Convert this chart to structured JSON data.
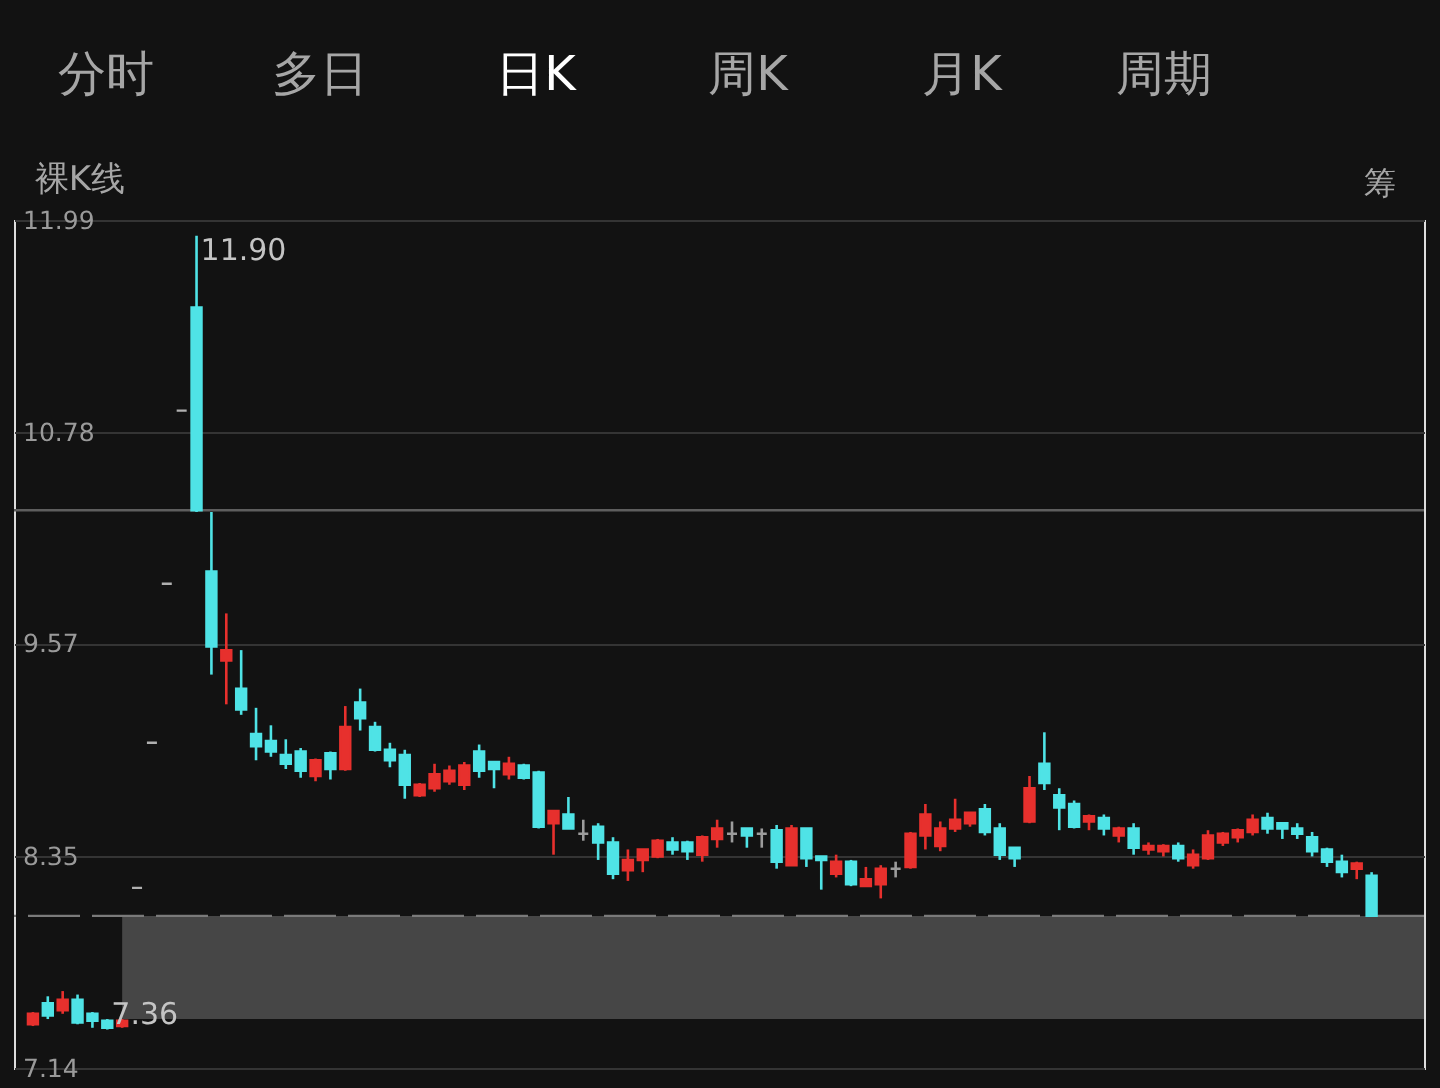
{
  "chart_data": {
    "type": "candlestick",
    "categories": [
      null,
      null,
      null,
      null,
      null,
      null,
      null,
      null,
      null,
      null,
      null,
      null,
      null,
      null,
      null,
      null,
      null,
      null,
      null,
      null,
      null,
      null,
      null,
      null,
      null,
      null,
      null,
      null,
      null,
      null,
      null,
      null,
      null,
      null,
      null,
      null,
      null,
      null,
      null,
      null,
      null,
      null,
      null,
      null,
      null,
      null,
      null,
      null,
      null,
      null,
      null,
      null,
      null,
      null,
      null,
      null,
      null,
      null,
      null,
      null,
      null,
      null,
      null,
      null,
      null,
      null,
      null,
      null,
      null,
      null,
      null,
      null,
      null,
      null,
      null,
      null,
      null,
      null,
      null,
      null,
      null,
      null,
      null,
      null,
      null,
      null,
      null,
      null,
      null,
      null,
      null
    ],
    "ohlc": [
      [
        7.39,
        7.46,
        7.38,
        7.45
      ],
      [
        7.51,
        7.55,
        7.42,
        7.44
      ],
      [
        7.47,
        7.58,
        7.45,
        7.53
      ],
      [
        7.53,
        7.56,
        7.39,
        7.4
      ],
      [
        7.45,
        7.46,
        7.37,
        7.41
      ],
      [
        7.41,
        7.42,
        7.36,
        7.37
      ],
      [
        7.38,
        7.42,
        7.37,
        7.41
      ],
      [
        8.17,
        8.17,
        8.17,
        8.17
      ],
      [
        9.0,
        9.0,
        9.0,
        9.0
      ],
      [
        9.91,
        9.91,
        9.91,
        9.91
      ],
      [
        10.9,
        10.9,
        10.9,
        10.9
      ],
      [
        11.49,
        11.9,
        10.32,
        10.33
      ],
      [
        9.98,
        10.32,
        9.39,
        9.55
      ],
      [
        9.47,
        9.74,
        9.22,
        9.53
      ],
      [
        9.31,
        9.53,
        9.16,
        9.19
      ],
      [
        9.05,
        9.2,
        8.9,
        8.98
      ],
      [
        9.01,
        9.1,
        8.92,
        8.95
      ],
      [
        8.93,
        9.02,
        8.85,
        8.88
      ],
      [
        8.95,
        8.97,
        8.8,
        8.84
      ],
      [
        8.81,
        8.91,
        8.78,
        8.9
      ],
      [
        8.94,
        8.95,
        8.79,
        8.85
      ],
      [
        8.85,
        9.21,
        8.84,
        9.09
      ],
      [
        9.23,
        9.31,
        9.07,
        9.14
      ],
      [
        9.09,
        9.12,
        8.95,
        8.96
      ],
      [
        8.96,
        9.0,
        8.86,
        8.9
      ],
      [
        8.93,
        8.96,
        8.68,
        8.76
      ],
      [
        8.7,
        8.77,
        8.69,
        8.76
      ],
      [
        8.74,
        8.88,
        8.72,
        8.82
      ],
      [
        8.78,
        8.87,
        8.76,
        8.84
      ],
      [
        8.76,
        8.89,
        8.73,
        8.87
      ],
      [
        8.95,
        8.99,
        8.8,
        8.84
      ],
      [
        8.89,
        8.89,
        8.74,
        8.85
      ],
      [
        8.82,
        8.92,
        8.79,
        8.88
      ],
      [
        8.87,
        8.88,
        8.79,
        8.8
      ],
      [
        8.83,
        8.84,
        8.51,
        8.52
      ],
      [
        8.54,
        8.61,
        8.36,
        8.61
      ],
      [
        8.59,
        8.69,
        8.51,
        8.51
      ],
      [
        8.48,
        8.56,
        8.44,
        8.48
      ],
      [
        8.52,
        8.54,
        8.33,
        8.43
      ],
      [
        8.43,
        8.46,
        8.22,
        8.25
      ],
      [
        8.27,
        8.39,
        8.21,
        8.33
      ],
      [
        8.33,
        8.39,
        8.26,
        8.39
      ],
      [
        8.35,
        8.45,
        8.34,
        8.44
      ],
      [
        8.43,
        8.46,
        8.36,
        8.39
      ],
      [
        8.43,
        8.44,
        8.33,
        8.38
      ],
      [
        8.36,
        8.47,
        8.32,
        8.46
      ],
      [
        8.45,
        8.56,
        8.4,
        8.51
      ],
      [
        8.48,
        8.55,
        8.43,
        8.48
      ],
      [
        8.51,
        8.51,
        8.4,
        8.47
      ],
      [
        8.48,
        8.51,
        8.4,
        8.48
      ],
      [
        8.5,
        8.53,
        8.28,
        8.32
      ],
      [
        8.3,
        8.53,
        8.3,
        8.51
      ],
      [
        8.51,
        8.51,
        8.29,
        8.34
      ],
      [
        8.35,
        8.35,
        8.16,
        8.33
      ],
      [
        8.25,
        8.36,
        8.23,
        8.32
      ],
      [
        8.32,
        8.33,
        8.18,
        8.19
      ],
      [
        8.18,
        8.29,
        8.18,
        8.22
      ],
      [
        8.19,
        8.3,
        8.11,
        8.28
      ],
      [
        8.28,
        8.32,
        8.23,
        8.28
      ],
      [
        8.29,
        8.49,
        8.28,
        8.48
      ],
      [
        8.47,
        8.65,
        8.39,
        8.59
      ],
      [
        8.41,
        8.55,
        8.38,
        8.51
      ],
      [
        8.51,
        8.68,
        8.49,
        8.56
      ],
      [
        8.54,
        8.6,
        8.52,
        8.6
      ],
      [
        8.62,
        8.65,
        8.47,
        8.49
      ],
      [
        8.51,
        8.54,
        8.33,
        8.36
      ],
      [
        8.4,
        8.4,
        8.29,
        8.34
      ],
      [
        8.55,
        8.81,
        8.54,
        8.74
      ],
      [
        8.88,
        9.06,
        8.73,
        8.77
      ],
      [
        8.7,
        8.74,
        8.5,
        8.63
      ],
      [
        8.65,
        8.67,
        8.51,
        8.52
      ],
      [
        8.55,
        8.59,
        8.5,
        8.58
      ],
      [
        8.57,
        8.59,
        8.47,
        8.51
      ],
      [
        8.47,
        8.52,
        8.43,
        8.51
      ],
      [
        8.51,
        8.54,
        8.36,
        8.4
      ],
      [
        8.39,
        8.43,
        8.36,
        8.41
      ],
      [
        8.38,
        8.42,
        8.35,
        8.41
      ],
      [
        8.41,
        8.43,
        8.32,
        8.34
      ],
      [
        8.3,
        8.39,
        8.28,
        8.36
      ],
      [
        8.34,
        8.5,
        8.33,
        8.47
      ],
      [
        8.43,
        8.49,
        8.41,
        8.48
      ],
      [
        8.46,
        8.51,
        8.43,
        8.5
      ],
      [
        8.49,
        8.59,
        8.47,
        8.56
      ],
      [
        8.57,
        8.6,
        8.48,
        8.51
      ],
      [
        8.54,
        8.54,
        8.45,
        8.51
      ],
      [
        8.51,
        8.54,
        8.45,
        8.48
      ],
      [
        8.46,
        8.49,
        8.35,
        8.38
      ],
      [
        8.39,
        8.4,
        8.29,
        8.32
      ],
      [
        8.32,
        8.36,
        8.23,
        8.26
      ],
      [
        8.28,
        8.32,
        8.22,
        8.31
      ],
      [
        8.24,
        8.26,
        8.01,
        8.01
      ]
    ],
    "colors": [
      "#e7302d",
      "#4fe3e6",
      "#e7302d",
      "#4fe3e6",
      "#4fe3e6",
      "#4fe3e6",
      "#e7302d",
      "#b0b0b0",
      "#b0b0b0",
      "#b0b0b0",
      "#b0b0b0",
      "#4fe3e6",
      "#4fe3e6",
      "#e7302d",
      "#4fe3e6",
      "#4fe3e6",
      "#4fe3e6",
      "#4fe3e6",
      "#4fe3e6",
      "#e7302d",
      "#4fe3e6",
      "#e7302d",
      "#4fe3e6",
      "#4fe3e6",
      "#4fe3e6",
      "#4fe3e6",
      "#e7302d",
      "#e7302d",
      "#e7302d",
      "#e7302d",
      "#4fe3e6",
      "#4fe3e6",
      "#e7302d",
      "#4fe3e6",
      "#4fe3e6",
      "#e7302d",
      "#4fe3e6",
      "#9c9c9c",
      "#4fe3e6",
      "#4fe3e6",
      "#e7302d",
      "#e7302d",
      "#e7302d",
      "#4fe3e6",
      "#4fe3e6",
      "#e7302d",
      "#e7302d",
      "#9c9c9c",
      "#4fe3e6",
      "#9c9c9c",
      "#4fe3e6",
      "#e7302d",
      "#4fe3e6",
      "#4fe3e6",
      "#e7302d",
      "#4fe3e6",
      "#e7302d",
      "#e7302d",
      "#9c9c9c",
      "#e7302d",
      "#e7302d",
      "#e7302d",
      "#e7302d",
      "#e7302d",
      "#4fe3e6",
      "#4fe3e6",
      "#4fe3e6",
      "#e7302d",
      "#4fe3e6",
      "#4fe3e6",
      "#4fe3e6",
      "#e7302d",
      "#4fe3e6",
      "#e7302d",
      "#4fe3e6",
      "#e7302d",
      "#e7302d",
      "#4fe3e6",
      "#e7302d",
      "#e7302d",
      "#e7302d",
      "#e7302d",
      "#e7302d",
      "#4fe3e6",
      "#4fe3e6",
      "#4fe3e6",
      "#4fe3e6",
      "#4fe3e6",
      "#4fe3e6",
      "#e7302d",
      "#4fe3e6"
    ],
    "ylim": [
      7.14,
      11.99
    ],
    "yticks": [
      7.14,
      8.35,
      9.57,
      10.78,
      11.99
    ],
    "grid": "y",
    "tick_labels": "y",
    "ref_lines": [
      {
        "axis": "y",
        "value": 8.01,
        "line_style": "dashed",
        "color": "#7a7a7a"
      },
      {
        "axis": "y",
        "value": 10.33,
        "color": "#5e5e5e"
      }
    ],
    "bands": [
      {
        "axis": "y",
        "from": 7.42,
        "to": 8.01,
        "color": "#464646"
      }
    ],
    "annotations": [
      "11.90",
      "7.36",
      "分时",
      "多日",
      "日K",
      "周K",
      "月K",
      "周期",
      "裸K线",
      "筹"
    ]
  }
}
